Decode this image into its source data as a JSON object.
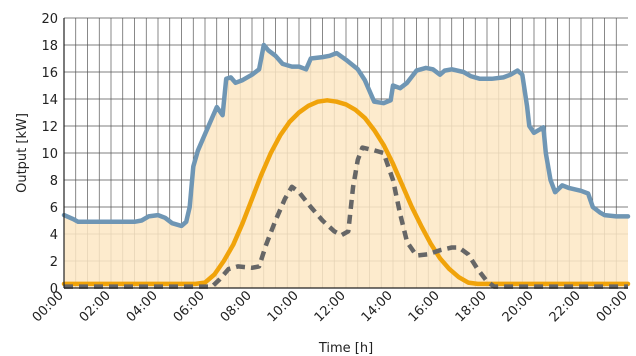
{
  "chart_data": {
    "type": "line",
    "xlabel": "Time [h]",
    "ylabel": "Output [kW]",
    "xlim": [
      0,
      24
    ],
    "ylim": [
      0,
      20
    ],
    "x_ticks": [
      "00:00",
      "02:00",
      "04:00",
      "06:00",
      "08:00",
      "10:00",
      "12:00",
      "14:00",
      "16:00",
      "18:00",
      "20:00",
      "22:00",
      "00:00"
    ],
    "y_ticks": [
      "0",
      "2",
      "4",
      "6",
      "8",
      "10",
      "12",
      "14",
      "16",
      "18",
      "20"
    ],
    "grid": true,
    "legend": "none",
    "series": [
      {
        "key": "load",
        "style": "solid-with-fill",
        "color": "#6f96b4",
        "fill": "#fde7c4",
        "points": [
          [
            0.0,
            5.4
          ],
          [
            0.4,
            5.1
          ],
          [
            0.6,
            4.9
          ],
          [
            1.0,
            4.9
          ],
          [
            2.0,
            4.9
          ],
          [
            3.0,
            4.9
          ],
          [
            3.3,
            5.0
          ],
          [
            3.6,
            5.3
          ],
          [
            4.0,
            5.4
          ],
          [
            4.3,
            5.2
          ],
          [
            4.6,
            4.8
          ],
          [
            5.0,
            4.6
          ],
          [
            5.2,
            4.9
          ],
          [
            5.35,
            6.0
          ],
          [
            5.5,
            9.0
          ],
          [
            5.7,
            10.2
          ],
          [
            6.0,
            11.4
          ],
          [
            6.3,
            12.6
          ],
          [
            6.5,
            13.4
          ],
          [
            6.75,
            12.8
          ],
          [
            6.9,
            15.5
          ],
          [
            7.1,
            15.6
          ],
          [
            7.3,
            15.2
          ],
          [
            7.6,
            15.4
          ],
          [
            8.0,
            15.8
          ],
          [
            8.3,
            16.2
          ],
          [
            8.5,
            18.0
          ],
          [
            8.7,
            17.6
          ],
          [
            9.0,
            17.2
          ],
          [
            9.3,
            16.6
          ],
          [
            9.7,
            16.4
          ],
          [
            10.0,
            16.4
          ],
          [
            10.3,
            16.2
          ],
          [
            10.5,
            17.0
          ],
          [
            11.0,
            17.1
          ],
          [
            11.3,
            17.2
          ],
          [
            11.6,
            17.4
          ],
          [
            12.0,
            16.9
          ],
          [
            12.5,
            16.2
          ],
          [
            12.8,
            15.4
          ],
          [
            13.2,
            13.8
          ],
          [
            13.6,
            13.7
          ],
          [
            13.9,
            13.9
          ],
          [
            14.0,
            15.0
          ],
          [
            14.3,
            14.8
          ],
          [
            14.6,
            15.2
          ],
          [
            15.0,
            16.1
          ],
          [
            15.4,
            16.3
          ],
          [
            15.7,
            16.2
          ],
          [
            16.0,
            15.8
          ],
          [
            16.2,
            16.1
          ],
          [
            16.5,
            16.2
          ],
          [
            17.0,
            16.0
          ],
          [
            17.3,
            15.7
          ],
          [
            17.7,
            15.5
          ],
          [
            18.2,
            15.5
          ],
          [
            18.7,
            15.6
          ],
          [
            19.0,
            15.8
          ],
          [
            19.3,
            16.1
          ],
          [
            19.5,
            15.8
          ],
          [
            19.7,
            13.5
          ],
          [
            19.8,
            12.0
          ],
          [
            20.0,
            11.5
          ],
          [
            20.2,
            11.7
          ],
          [
            20.4,
            11.9
          ],
          [
            20.5,
            10.0
          ],
          [
            20.7,
            8.0
          ],
          [
            20.9,
            7.1
          ],
          [
            21.2,
            7.6
          ],
          [
            21.5,
            7.4
          ],
          [
            22.0,
            7.2
          ],
          [
            22.3,
            7.0
          ],
          [
            22.5,
            6.0
          ],
          [
            22.8,
            5.6
          ],
          [
            23.0,
            5.4
          ],
          [
            23.5,
            5.3
          ],
          [
            24.0,
            5.3
          ]
        ]
      },
      {
        "key": "pv",
        "style": "solid",
        "color": "#f0a30a",
        "points": [
          [
            0.0,
            0.3
          ],
          [
            5.6,
            0.3
          ],
          [
            6.0,
            0.4
          ],
          [
            6.4,
            1.0
          ],
          [
            6.8,
            2.0
          ],
          [
            7.2,
            3.2
          ],
          [
            7.6,
            4.8
          ],
          [
            8.0,
            6.6
          ],
          [
            8.4,
            8.4
          ],
          [
            8.8,
            10.0
          ],
          [
            9.2,
            11.3
          ],
          [
            9.6,
            12.3
          ],
          [
            10.0,
            13.0
          ],
          [
            10.4,
            13.5
          ],
          [
            10.8,
            13.8
          ],
          [
            11.2,
            13.9
          ],
          [
            11.6,
            13.8
          ],
          [
            12.0,
            13.6
          ],
          [
            12.4,
            13.2
          ],
          [
            12.8,
            12.6
          ],
          [
            13.2,
            11.7
          ],
          [
            13.6,
            10.6
          ],
          [
            14.0,
            9.2
          ],
          [
            14.4,
            7.6
          ],
          [
            14.8,
            6.0
          ],
          [
            15.2,
            4.6
          ],
          [
            15.6,
            3.3
          ],
          [
            16.0,
            2.2
          ],
          [
            16.4,
            1.4
          ],
          [
            16.8,
            0.8
          ],
          [
            17.2,
            0.4
          ],
          [
            17.6,
            0.3
          ],
          [
            24.0,
            0.3
          ]
        ]
      },
      {
        "key": "dashed",
        "style": "dashed",
        "color": "#666666",
        "points": [
          [
            0.0,
            0.1
          ],
          [
            6.3,
            0.1
          ],
          [
            6.6,
            0.6
          ],
          [
            7.0,
            1.4
          ],
          [
            7.4,
            1.6
          ],
          [
            8.0,
            1.5
          ],
          [
            8.3,
            1.6
          ],
          [
            8.6,
            3.2
          ],
          [
            9.0,
            5.0
          ],
          [
            9.4,
            6.6
          ],
          [
            9.7,
            7.5
          ],
          [
            10.0,
            7.1
          ],
          [
            10.5,
            6.0
          ],
          [
            11.0,
            5.0
          ],
          [
            11.5,
            4.2
          ],
          [
            11.8,
            3.9
          ],
          [
            12.1,
            4.2
          ],
          [
            12.3,
            7.5
          ],
          [
            12.5,
            9.5
          ],
          [
            12.7,
            10.4
          ],
          [
            13.2,
            10.2
          ],
          [
            13.6,
            10.0
          ],
          [
            14.0,
            8.0
          ],
          [
            14.3,
            5.5
          ],
          [
            14.6,
            3.4
          ],
          [
            15.0,
            2.4
          ],
          [
            15.5,
            2.5
          ],
          [
            16.0,
            2.8
          ],
          [
            16.5,
            3.0
          ],
          [
            16.8,
            3.0
          ],
          [
            17.2,
            2.5
          ],
          [
            17.6,
            1.4
          ],
          [
            18.0,
            0.5
          ],
          [
            18.3,
            0.1
          ],
          [
            24.0,
            0.1
          ]
        ]
      }
    ]
  }
}
